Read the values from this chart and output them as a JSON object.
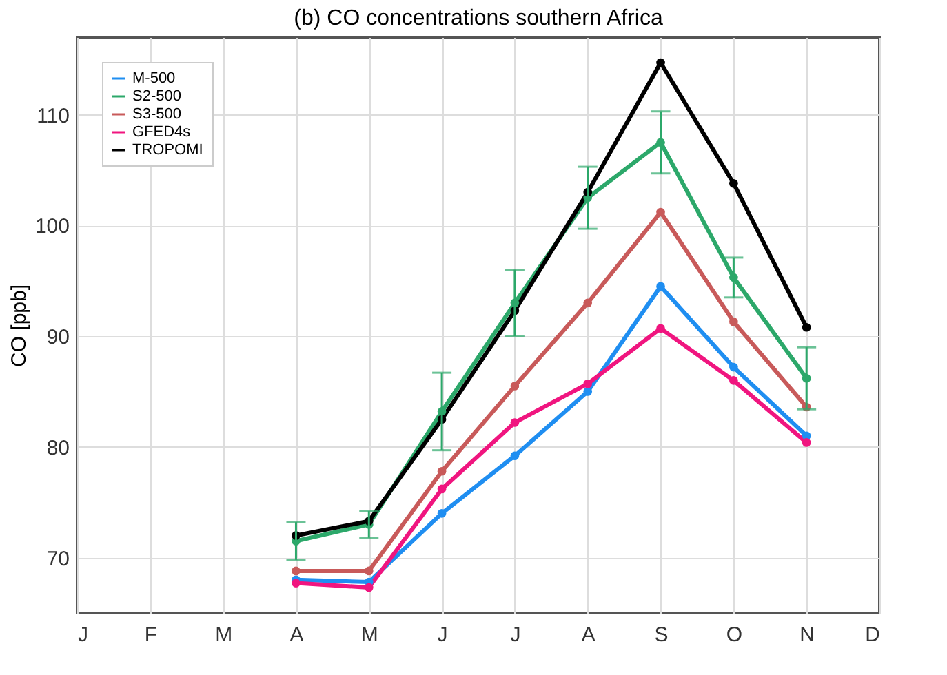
{
  "chart_data": {
    "type": "line",
    "title": "(b) CO concentrations southern Africa",
    "ylabel": "CO [ppb]",
    "categories": [
      "J",
      "F",
      "M",
      "A",
      "M",
      "J",
      "J",
      "A",
      "S",
      "O",
      "N",
      "D"
    ],
    "series": [
      {
        "name": "M-500",
        "color": "#1f8ef1",
        "values": [
          null,
          null,
          null,
          68,
          67.8,
          74,
          79.2,
          85,
          94.5,
          87.2,
          81,
          null
        ]
      },
      {
        "name": "S2-500",
        "color": "#2ca86a",
        "values": [
          null,
          null,
          null,
          71.5,
          73,
          83.2,
          93,
          102.5,
          107.5,
          95.3,
          86.2,
          null
        ],
        "errors": [
          null,
          null,
          null,
          1.7,
          1.2,
          3.5,
          3,
          2.8,
          2.8,
          1.8,
          2.8,
          null
        ]
      },
      {
        "name": "S3-500",
        "color": "#c85a5a",
        "values": [
          null,
          null,
          null,
          68.8,
          68.8,
          77.8,
          85.5,
          93,
          101.2,
          91.3,
          83.6,
          null
        ]
      },
      {
        "name": "GFED4s",
        "color": "#f0157f",
        "values": [
          null,
          null,
          null,
          67.7,
          67.3,
          76.2,
          82.2,
          85.7,
          90.7,
          86,
          80.4,
          null
        ]
      },
      {
        "name": "TROPOMI",
        "color": "#000000",
        "values": [
          null,
          null,
          null,
          72,
          73.3,
          82.5,
          92.3,
          103,
          114.7,
          103.8,
          90.8,
          null
        ]
      }
    ],
    "ylim": [
      65,
      117
    ],
    "yticks": [
      70,
      80,
      90,
      100,
      110
    ],
    "grid": true,
    "legend": "top left",
    "marker": "circle",
    "line_style": "solid"
  }
}
